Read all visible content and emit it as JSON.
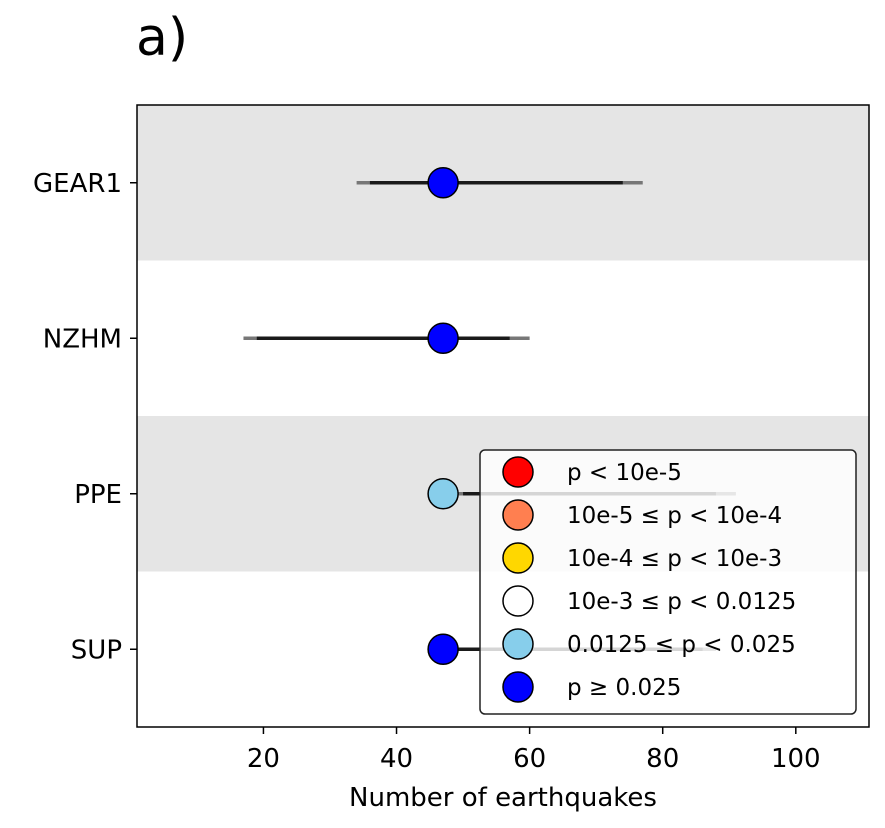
{
  "panel_label": "a)",
  "chart_data": {
    "type": "scatter",
    "xlabel": "Number of earthquakes",
    "xlim": [
      1,
      111
    ],
    "x_ticks": [
      20,
      40,
      60,
      80,
      100
    ],
    "categories": [
      "GEAR1",
      "NZHM",
      "PPE",
      "SUP"
    ],
    "shaded_bands": [
      "GEAR1",
      "PPE"
    ],
    "band_color": "#e5e5e5",
    "observed": 47,
    "models": [
      {
        "name": "GEAR1",
        "inner": [
          36,
          74
        ],
        "outer": [
          34,
          77
        ],
        "marker_color": "#0000ff"
      },
      {
        "name": "NZHM",
        "inner": [
          19,
          57
        ],
        "outer": [
          17,
          60
        ],
        "marker_color": "#0000ff"
      },
      {
        "name": "PPE",
        "inner": [
          50,
          88
        ],
        "outer": [
          47,
          91
        ],
        "marker_color": "#87ceeb"
      },
      {
        "name": "SUP",
        "inner": [
          48,
          86
        ],
        "outer": [
          46,
          88
        ],
        "marker_color": "#0000ff"
      }
    ],
    "legend": {
      "position": "lower-right",
      "entries": [
        {
          "label": "p < 10e-5",
          "color": "#ff0000"
        },
        {
          "label": "10e-5 ≤ p < 10e-4",
          "color": "#ff7f50"
        },
        {
          "label": "10e-4 ≤ p < 10e-3",
          "color": "#ffd700"
        },
        {
          "label": "10e-3 ≤ p < 0.0125",
          "color": "#ffffff"
        },
        {
          "label": "0.0125 ≤ p < 0.025",
          "color": "#87ceeb"
        },
        {
          "label": "p ≥ 0.025",
          "color": "#0000ff"
        }
      ]
    }
  }
}
